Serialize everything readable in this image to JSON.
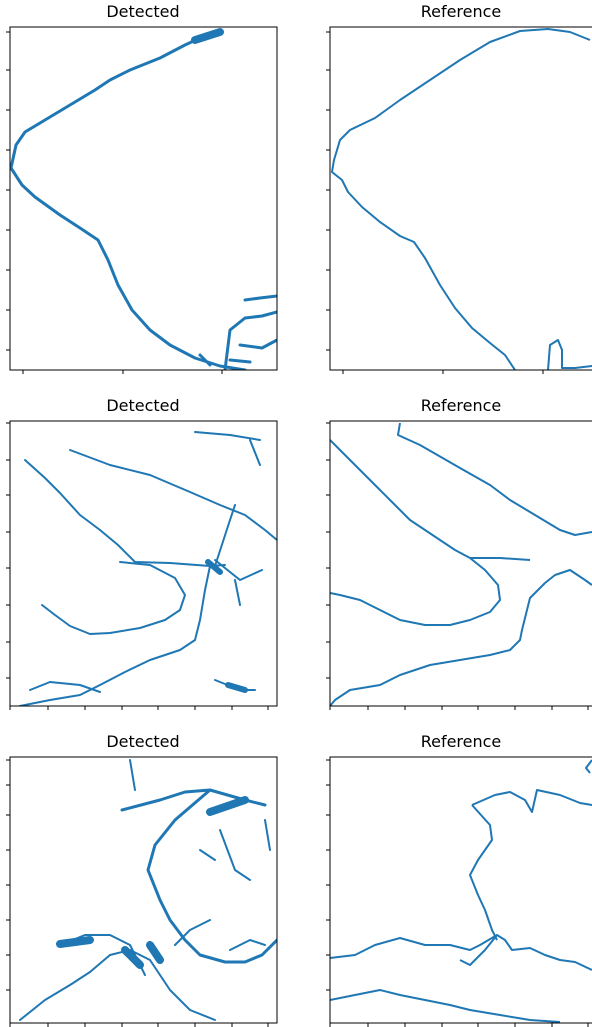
{
  "panels": [
    {
      "title": "Detected"
    },
    {
      "title": "Reference"
    },
    {
      "title": "Detected"
    },
    {
      "title": "Reference"
    },
    {
      "title": "Detected"
    },
    {
      "title": "Reference"
    }
  ]
}
